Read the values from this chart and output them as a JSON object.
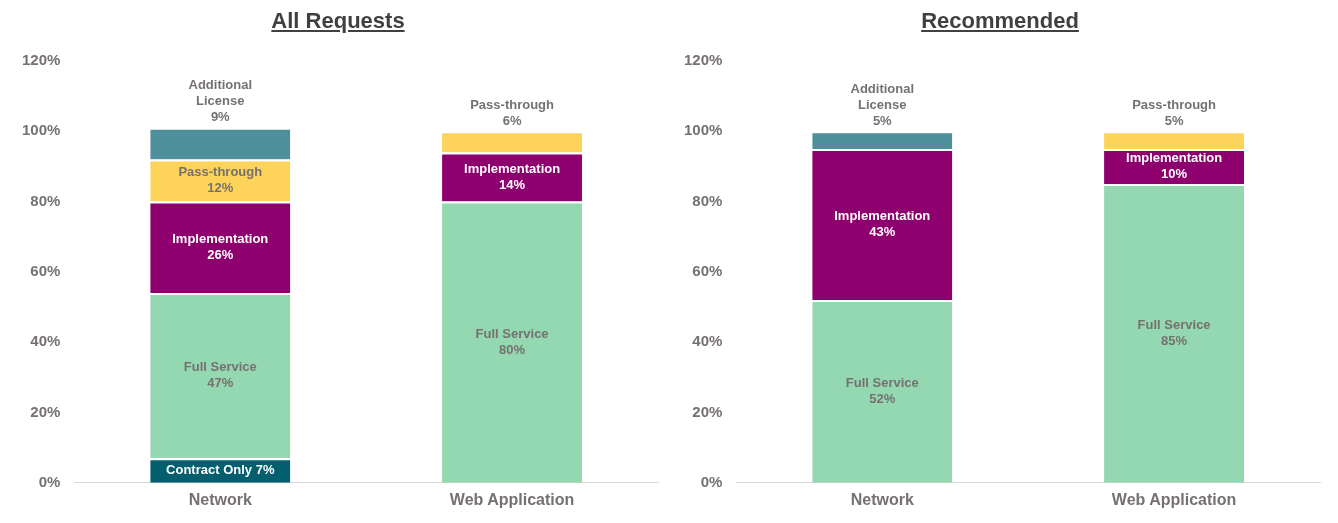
{
  "chart_data": [
    {
      "type": "bar",
      "title": "All Requests",
      "stacked": true,
      "categories": [
        "Network",
        "Web Application"
      ],
      "ylim": [
        0,
        120
      ],
      "yticks": [
        {
          "value": 0,
          "label": "0%"
        },
        {
          "value": 20,
          "label": "20%"
        },
        {
          "value": 40,
          "label": "40%"
        },
        {
          "value": 60,
          "label": "60%"
        },
        {
          "value": 80,
          "label": "80%"
        },
        {
          "value": 100,
          "label": "100%"
        },
        {
          "value": 120,
          "label": "120%"
        }
      ],
      "legend": false,
      "series": [
        {
          "name": "Contract Only",
          "color": "#035f6e",
          "values": [
            7,
            null
          ],
          "value_labels": [
            "7%",
            null
          ]
        },
        {
          "name": "Full Service",
          "color": "#93d8b0",
          "values": [
            47,
            80
          ],
          "value_labels": [
            "47%",
            "80%"
          ]
        },
        {
          "name": "Implementation",
          "color": "#8e006e",
          "values": [
            26,
            14
          ],
          "value_labels": [
            "26%",
            "14%"
          ]
        },
        {
          "name": "Pass-through",
          "color": "#fdd35a",
          "values": [
            12,
            6
          ],
          "value_labels": [
            "12%",
            "6%"
          ]
        },
        {
          "name": "Additional License",
          "color": "#4e8f9c",
          "values": [
            9,
            null
          ],
          "value_labels": [
            "9%",
            null
          ]
        }
      ]
    },
    {
      "type": "bar",
      "title": "Recommended",
      "stacked": true,
      "categories": [
        "Network",
        "Web Application"
      ],
      "ylim": [
        0,
        120
      ],
      "yticks": [
        {
          "value": 0,
          "label": "0%"
        },
        {
          "value": 20,
          "label": "20%"
        },
        {
          "value": 40,
          "label": "40%"
        },
        {
          "value": 60,
          "label": "60%"
        },
        {
          "value": 80,
          "label": "80%"
        },
        {
          "value": 100,
          "label": "100%"
        },
        {
          "value": 120,
          "label": "120%"
        }
      ],
      "legend": false,
      "series": [
        {
          "name": "Full Service",
          "color": "#93d8b0",
          "values": [
            52,
            85
          ],
          "value_labels": [
            "52%",
            "85%"
          ]
        },
        {
          "name": "Implementation",
          "color": "#8e006e",
          "values": [
            43,
            10
          ],
          "value_labels": [
            "43%",
            "10%"
          ]
        },
        {
          "name": "Pass-through",
          "color": "#fdd35a",
          "values": [
            null,
            5
          ],
          "value_labels": [
            null,
            "5%"
          ]
        },
        {
          "name": "Additional License",
          "color": "#4e8f9c",
          "values": [
            5,
            null
          ],
          "value_labels": [
            "5%",
            null
          ]
        }
      ]
    }
  ]
}
